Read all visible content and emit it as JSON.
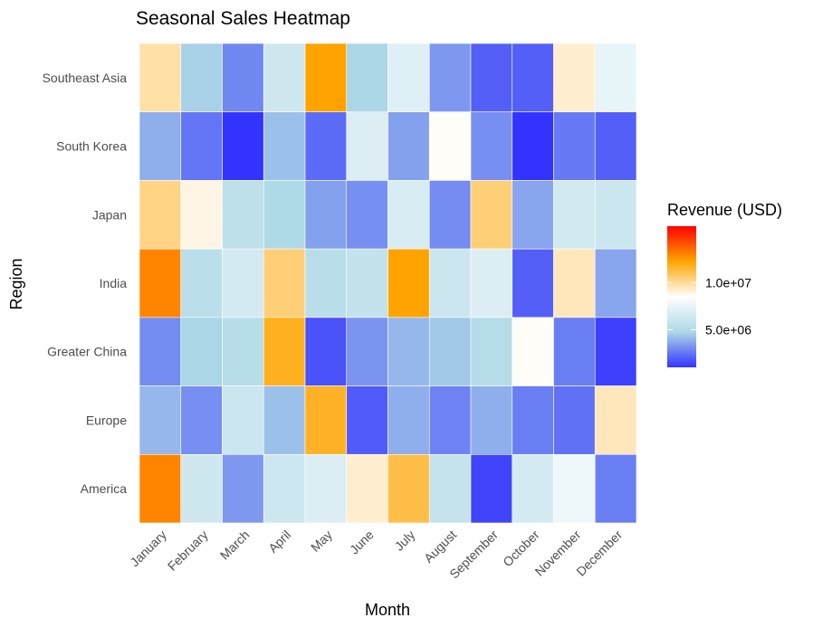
{
  "chart_data": {
    "type": "heatmap",
    "title": "Seasonal Sales Heatmap",
    "xlabel": "Month",
    "ylabel": "Region",
    "x": [
      "January",
      "February",
      "March",
      "April",
      "May",
      "June",
      "July",
      "August",
      "September",
      "October",
      "November",
      "December"
    ],
    "y": [
      "Southeast Asia",
      "South Korea",
      "Japan",
      "India",
      "Greater China",
      "Europe",
      "America"
    ],
    "values": [
      [
        9800000,
        4600000,
        2900000,
        6300000,
        12300000,
        4700000,
        7000000,
        3300000,
        2000000,
        2000000,
        9200000,
        7400000
      ],
      [
        3800000,
        2500000,
        1000000,
        4200000,
        2300000,
        6900000,
        3500000,
        8600000,
        3100000,
        1000000,
        2600000,
        2000000
      ],
      [
        10300000,
        8900000,
        5500000,
        4800000,
        3500000,
        3100000,
        6700000,
        3000000,
        10500000,
        3600000,
        6400000,
        6100000
      ],
      [
        13000000,
        5400000,
        6500000,
        10500000,
        5300000,
        5700000,
        12300000,
        6100000,
        6900000,
        2000000,
        9500000,
        3600000
      ],
      [
        3000000,
        4700000,
        5200000,
        11800000,
        1700000,
        3200000,
        4000000,
        4400000,
        5100000,
        8600000,
        2700000,
        1300000
      ],
      [
        4000000,
        3100000,
        6100000,
        4200000,
        11700000,
        1900000,
        3800000,
        2800000,
        3800000,
        2700000,
        2400000,
        9500000
      ],
      [
        13000000,
        6300000,
        3300000,
        6200000,
        6900000,
        9200000,
        11200000,
        5800000,
        1400000,
        6500000,
        7700000,
        2700000
      ]
    ],
    "colorbar": {
      "title": "Revenue (USD)",
      "tick_labels": [
        "1.0e+07",
        "5.0e+06"
      ],
      "tick_values": [
        10000000,
        5000000
      ],
      "min": 1000000,
      "max": 16000000,
      "colors": [
        "#3333ff",
        "#add8e6",
        "#ffffff",
        "#ffa500",
        "#ff0000"
      ]
    },
    "grid": false
  }
}
